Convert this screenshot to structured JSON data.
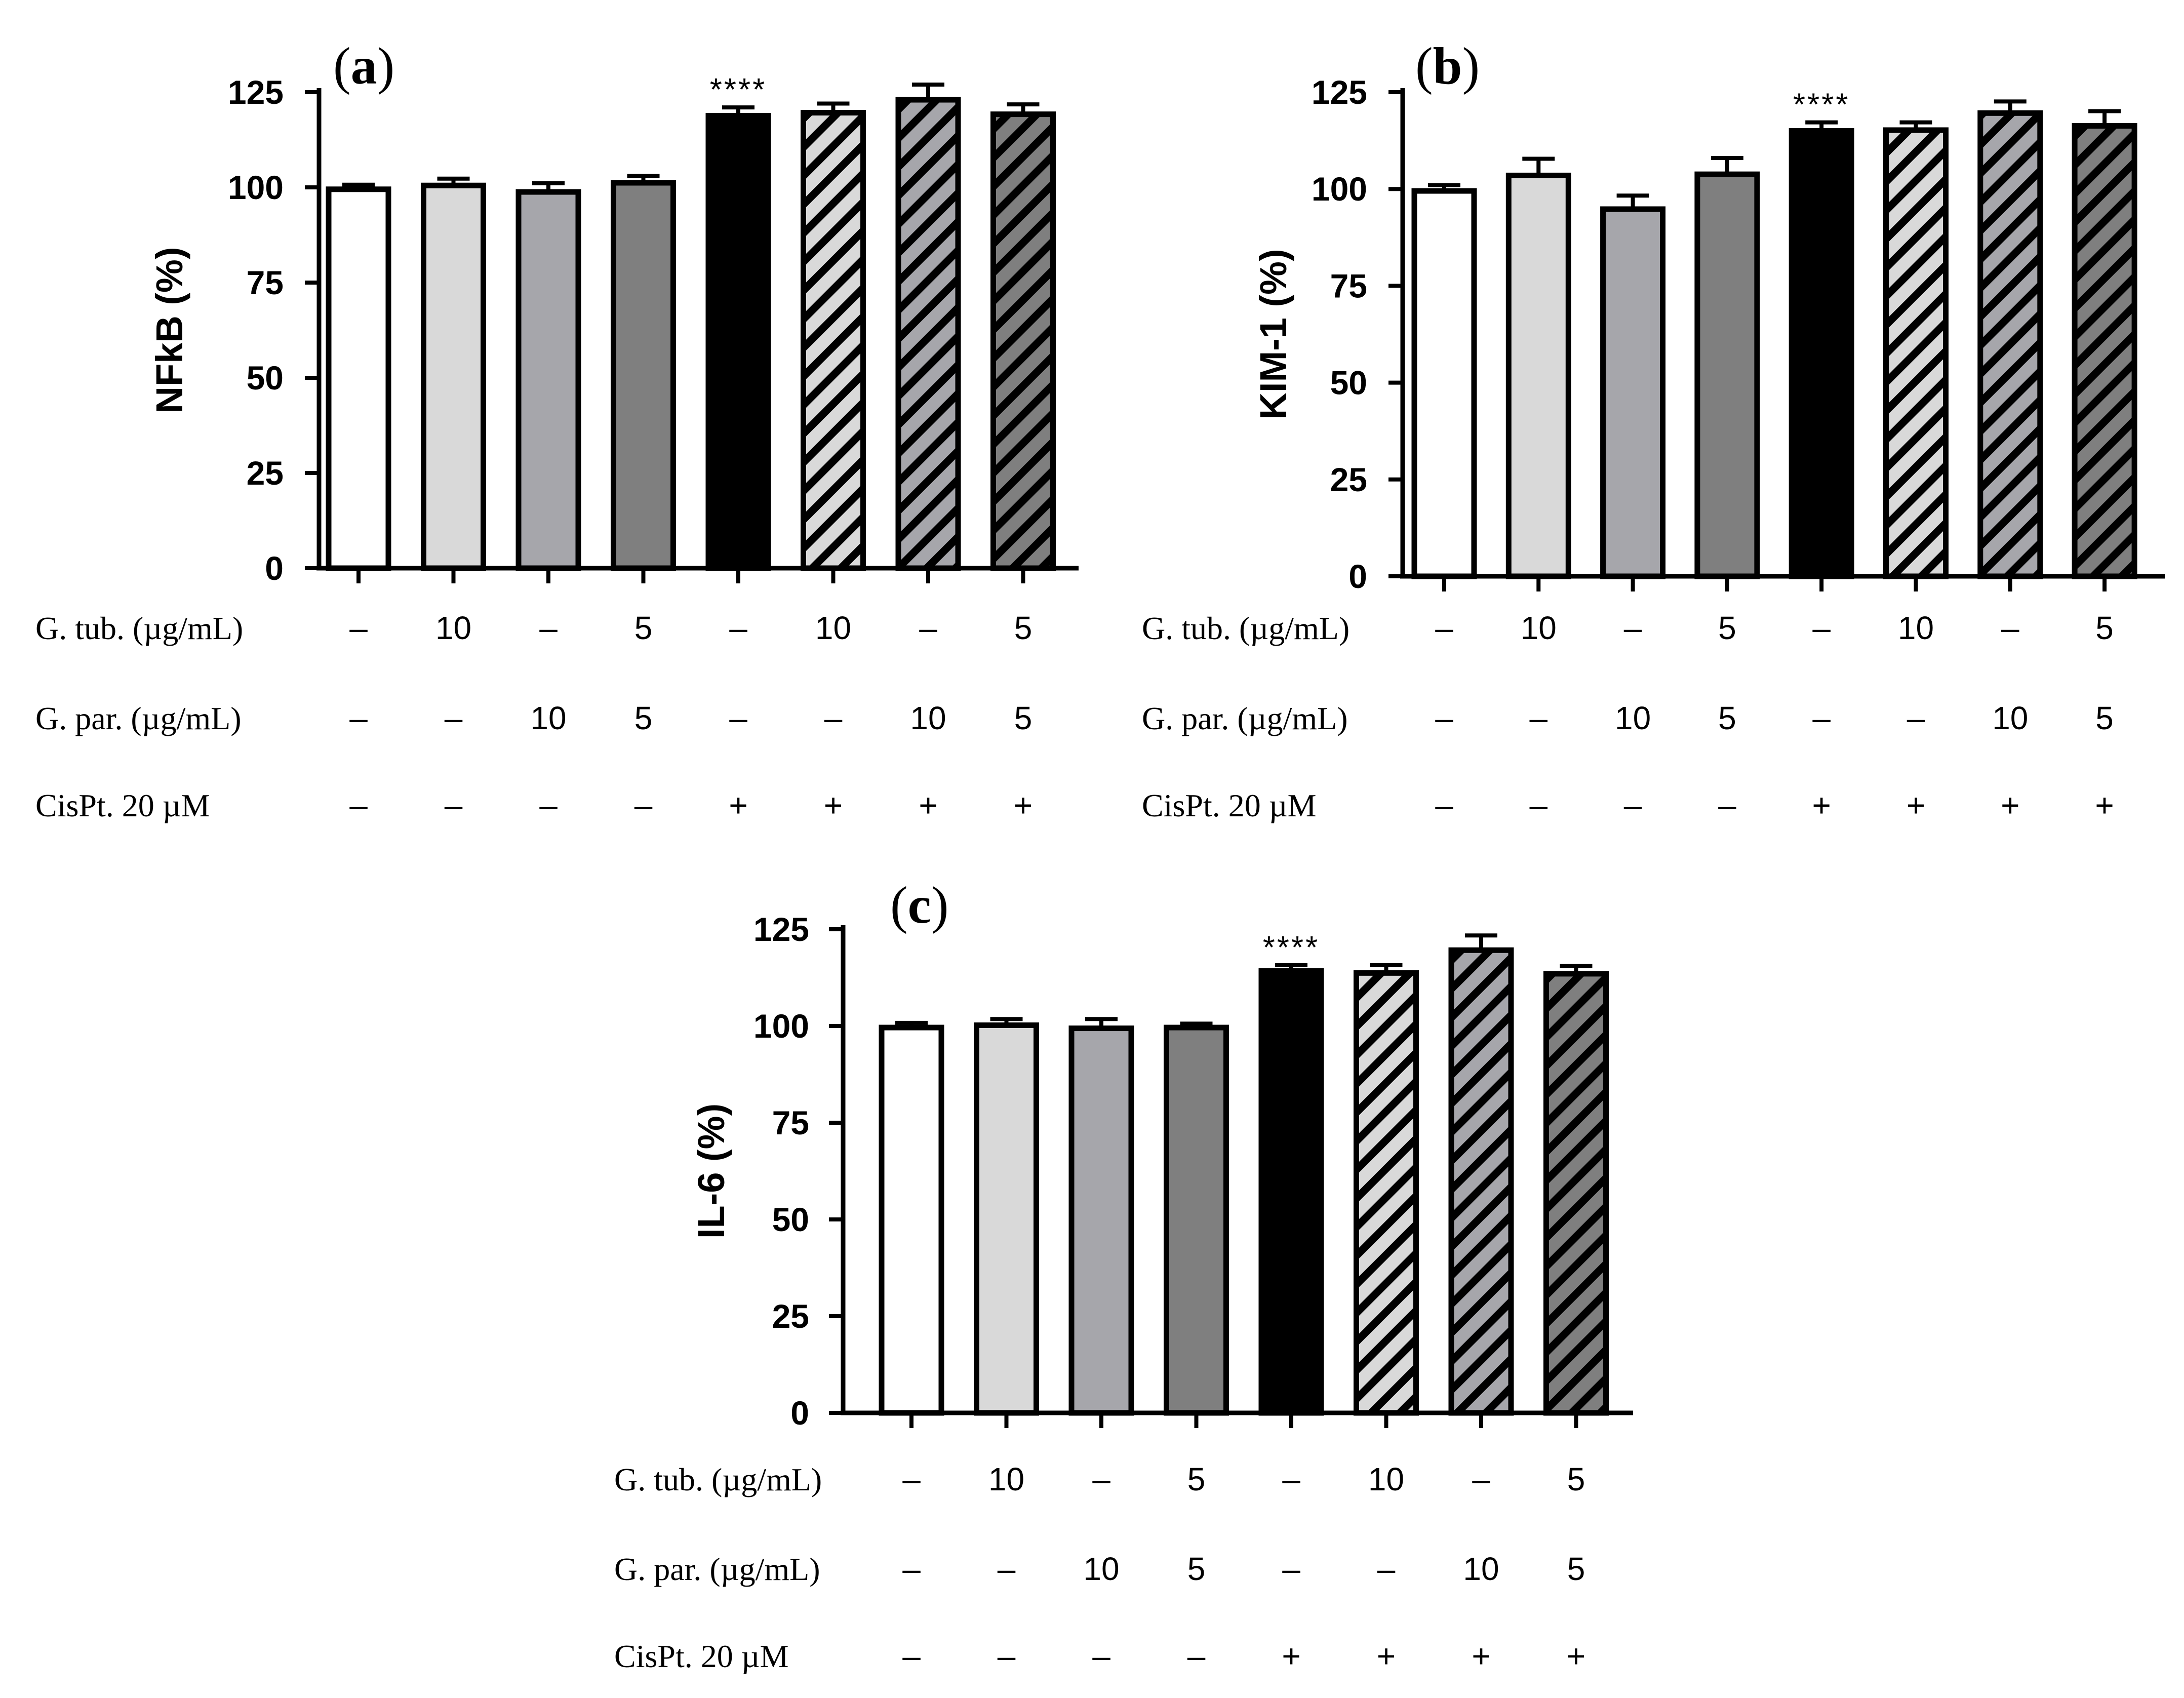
{
  "chart_data": [
    {
      "type": "bar",
      "panel_label": "a",
      "ylabel": "NFkB (%)",
      "yticks": [
        0,
        25,
        50,
        75,
        100,
        125
      ],
      "ylim": [
        0,
        125
      ],
      "values": [
        99.5,
        100.5,
        98.8,
        101.2,
        118.8,
        119.6,
        123.0,
        119.2
      ],
      "errors": [
        1.2,
        1.8,
        2.3,
        1.8,
        2.2,
        2.4,
        4.0,
        2.6
      ],
      "significance": [
        {
          "bar_index": 4,
          "label": "****"
        }
      ],
      "conditions": {
        "gtub": {
          "label": "G. tub. (µg/mL)",
          "values": [
            "–",
            "10",
            "–",
            "5",
            "–",
            "10",
            "–",
            "5"
          ]
        },
        "gpar": {
          "label": "G. par. (µg/mL)",
          "values": [
            "–",
            "–",
            "10",
            "5",
            "–",
            "–",
            "10",
            "5"
          ]
        },
        "cispt": {
          "label": "CisPt. 20 µM",
          "values": [
            "–",
            "–",
            "–",
            "–",
            "+",
            "+",
            "+",
            "+"
          ]
        }
      }
    },
    {
      "type": "bar",
      "panel_label": "b",
      "ylabel": "KIM-1 (%)",
      "yticks": [
        0,
        25,
        50,
        75,
        100,
        125
      ],
      "ylim": [
        0,
        125
      ],
      "values": [
        99.5,
        103.5,
        94.8,
        103.8,
        115.0,
        115.2,
        119.6,
        116.3
      ],
      "errors": [
        1.5,
        4.3,
        3.5,
        4.2,
        2.2,
        2.0,
        3.0,
        3.8
      ],
      "significance": [
        {
          "bar_index": 4,
          "label": "****"
        }
      ],
      "conditions": {
        "gtub": {
          "label": "G. tub. (µg/mL)",
          "values": [
            "–",
            "10",
            "–",
            "5",
            "–",
            "10",
            "–",
            "5"
          ]
        },
        "gpar": {
          "label": "G. par. (µg/mL)",
          "values": [
            "–",
            "–",
            "10",
            "5",
            "–",
            "–",
            "10",
            "5"
          ]
        },
        "cispt": {
          "label": "CisPt. 20 µM",
          "values": [
            "–",
            "–",
            "–",
            "–",
            "+",
            "+",
            "+",
            "+"
          ]
        }
      }
    },
    {
      "type": "bar",
      "panel_label": "c",
      "ylabel": "IL-6 (%)",
      "yticks": [
        0,
        25,
        50,
        75,
        100,
        125
      ],
      "ylim": [
        0,
        125
      ],
      "values": [
        99.6,
        100.2,
        99.4,
        99.6,
        114.2,
        113.7,
        119.6,
        113.5
      ],
      "errors": [
        1.2,
        1.6,
        2.4,
        1.0,
        1.5,
        2.0,
        3.8,
        2.0
      ],
      "significance": [
        {
          "bar_index": 4,
          "label": "****"
        }
      ],
      "conditions": {
        "gtub": {
          "label": "G. tub. (µg/mL)",
          "values": [
            "–",
            "10",
            "–",
            "5",
            "–",
            "10",
            "–",
            "5"
          ]
        },
        "gpar": {
          "label": "G. par. (µg/mL)",
          "values": [
            "–",
            "–",
            "10",
            "5",
            "–",
            "–",
            "10",
            "5"
          ]
        },
        "cispt": {
          "label": "CisPt. 20 µM",
          "values": [
            "–",
            "–",
            "–",
            "–",
            "+",
            "+",
            "+",
            "+"
          ]
        }
      }
    }
  ],
  "bar_styles": [
    {
      "fill": "#ffffff",
      "hatch": false
    },
    {
      "fill": "#d9d9d9",
      "hatch": false
    },
    {
      "fill": "#a6a6ab",
      "hatch": false
    },
    {
      "fill": "#7f7f7f",
      "hatch": false
    },
    {
      "fill": "#000000",
      "hatch": false
    },
    {
      "fill": "#d9d9d9",
      "hatch": true
    },
    {
      "fill": "#a6a6ab",
      "hatch": true
    },
    {
      "fill": "#7f7f7f",
      "hatch": true
    }
  ]
}
